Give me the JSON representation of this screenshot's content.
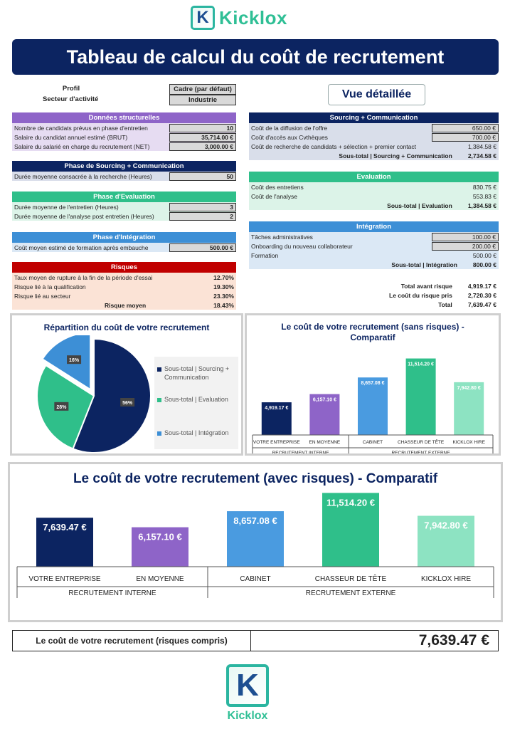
{
  "brand": {
    "name": "Kicklox"
  },
  "title": "Tableau de calcul du coût de recrutement",
  "profil": {
    "label": "Profil",
    "value": "Cadre (par défaut)",
    "secteur_label": "Secteur d'activité",
    "secteur_value": "Industrie"
  },
  "vue_detaillee": "Vue détaillée",
  "donnees": {
    "header": "Données structurelles",
    "rows": [
      {
        "label": "Nombre de candidats prévus en phase d'entretien",
        "value": "10"
      },
      {
        "label": "Salaire du candidat annuel estimé (BRUT)",
        "value": "35,714.00 €"
      },
      {
        "label": "Salaire du salarié en charge du recrutement (NET)",
        "value": "3,000.00 €"
      }
    ]
  },
  "sourcing_phase": {
    "header": "Phase de Sourcing + Communication",
    "rows": [
      {
        "label": "Durée moyenne consacrée à la recherche (Heures)",
        "value": "50"
      }
    ]
  },
  "evaluation_phase": {
    "header": "Phase d'Evaluation",
    "rows": [
      {
        "label": "Durée moyenne de l'entretien (Heures)",
        "value": "3"
      },
      {
        "label": "Durée moyenne de l'analyse post entretien (Heures)",
        "value": "2"
      }
    ]
  },
  "integration_phase": {
    "header": "Phase d'Intégration",
    "rows": [
      {
        "label": "Coût moyen estimé de formation après embauche",
        "value": "500.00 €"
      }
    ]
  },
  "risques": {
    "header": "Risques",
    "rows": [
      {
        "label": "Taux moyen de rupture à la fin de la période d'essai",
        "value": "12.70%"
      },
      {
        "label": "Risque lié à la qualification",
        "value": "19.30%"
      },
      {
        "label": "Risque lié au secteur",
        "value": "23.30%"
      }
    ],
    "moyen_label": "Risque moyen",
    "moyen_value": "18.43%"
  },
  "right_sourcing": {
    "header": "Sourcing + Communication",
    "rows": [
      {
        "label": "Coût de la diffusion de l'offre",
        "value": "650.00 €",
        "boxed": true
      },
      {
        "label": "Coût d'accès aux Cvthèques",
        "value": "700.00 €",
        "boxed": true
      },
      {
        "label": "Coût de recherche de candidats + sélection + premier contact",
        "value": "1,384.58 €",
        "boxed": false
      }
    ],
    "subtotal_label": "Sous-total | Sourcing + Communication",
    "subtotal_value": "2,734.58 €"
  },
  "right_evaluation": {
    "header": "Evaluation",
    "rows": [
      {
        "label": "Coût des entretiens",
        "value": "830.75 €"
      },
      {
        "label": "Coût de l'analyse",
        "value": "553.83 €"
      }
    ],
    "subtotal_label": "Sous-total | Evaluation",
    "subtotal_value": "1,384.58 €"
  },
  "right_integration": {
    "header": "Intégration",
    "rows": [
      {
        "label": "Tâches administratives",
        "value": "100.00 €",
        "boxed": true
      },
      {
        "label": "Onboarding du nouveau collaborateur",
        "value": "200.00 €",
        "boxed": true
      },
      {
        "label": "Formation",
        "value": "500.00 €",
        "boxed": false
      }
    ],
    "subtotal_label": "Sous-total | Intégration",
    "subtotal_value": "800.00 €"
  },
  "totals": [
    {
      "label": "Total avant risque",
      "value": "4,919.17 €"
    },
    {
      "label": "Le coût du risque pris",
      "value": "2,720.30 €"
    },
    {
      "label": "Total",
      "value": "7,639.47 €"
    }
  ],
  "final": {
    "label": "Le coût de votre recrutement (risques compris)",
    "value": "7,639.47 €"
  },
  "colors": {
    "navy": "#0c2461",
    "purple": "#8e64c8",
    "green": "#2fbf8a",
    "blue": "#3d8fd6",
    "red": "#c00000",
    "mint": "#8de3c2",
    "medblue": "#4a9be0"
  },
  "chart_data": [
    {
      "type": "pie",
      "title": "Répartition du coût de votre recrutement",
      "categories": [
        "Sous-total | Sourcing + Communication",
        "Sous-total | Evaluation",
        "Sous-total | Intégration"
      ],
      "values": [
        56,
        28,
        16
      ],
      "labels": [
        "56%",
        "28%",
        "16%"
      ],
      "colors": [
        "#0c2461",
        "#2fbf8a",
        "#3d8fd6"
      ],
      "legend": "right"
    },
    {
      "type": "bar",
      "title": "Le coût de votre recrutement (sans risques) - Comparatif",
      "categories": [
        "VOTRE ENTREPRISE",
        "EN MOYENNE",
        "CABINET",
        "CHASSEUR DE TÊTE",
        "KICKLOX HIRE"
      ],
      "groups": [
        {
          "label": "RECRUTEMENT INTERNE",
          "span": 2
        },
        {
          "label": "RECRUTEMENT EXTERNE",
          "span": 3
        }
      ],
      "values": [
        4919.17,
        6157.1,
        8657.08,
        11514.2,
        7942.8
      ],
      "labels": [
        "4,919.17 €",
        "6,157.10 €",
        "8,657.08 €",
        "11,514.20 €",
        "7,942.80 €"
      ],
      "colors": [
        "#0c2461",
        "#8e64c8",
        "#4a9be0",
        "#2fbf8a",
        "#8de3c2"
      ],
      "ylim": [
        0,
        12000
      ]
    },
    {
      "type": "bar",
      "title": "Le coût de votre recrutement (avec risques) - Comparatif",
      "categories": [
        "VOTRE ENTREPRISE",
        "EN MOYENNE",
        "CABINET",
        "CHASSEUR DE TÊTE",
        "KICKLOX HIRE"
      ],
      "groups": [
        {
          "label": "RECRUTEMENT INTERNE",
          "span": 2
        },
        {
          "label": "RECRUTEMENT EXTERNE",
          "span": 3
        }
      ],
      "values": [
        7639.47,
        6157.1,
        8657.08,
        11514.2,
        7942.8
      ],
      "labels": [
        "7,639.47 €",
        "6,157.10 €",
        "8,657.08 €",
        "11,514.20 €",
        "7,942.80 €"
      ],
      "colors": [
        "#0c2461",
        "#8e64c8",
        "#4a9be0",
        "#2fbf8a",
        "#8de3c2"
      ],
      "ylim": [
        0,
        12000
      ]
    }
  ]
}
